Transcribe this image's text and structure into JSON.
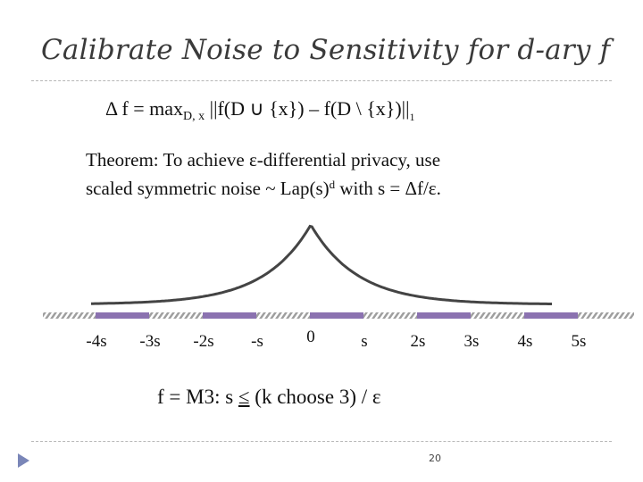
{
  "slide": {
    "title": "Calibrate Noise to Sensitivity for d-ary f",
    "formula": {
      "lhs": "Δ f = max",
      "sub": "D, x",
      "rhs": " ||f(D ∪ {x}) – f(D \\ {x})||",
      "norm_sub": "1"
    },
    "theorem": {
      "line1": "Theorem: To achieve ε-differential privacy, use",
      "line2_a": "scaled symmetric noise ~ Lap(s)",
      "line2_sup": "d",
      "line2_b": " with s = Δf/ε."
    },
    "bound": {
      "lhs": "f  = M3:  s ",
      "leq": "≤",
      "rhs": "  (k choose 3) / ε"
    },
    "page_number": "20"
  },
  "chart_data": {
    "type": "line",
    "distribution": "laplace",
    "ticks": [
      "-4s",
      "-3s",
      "-2s",
      "-s",
      "0",
      "s",
      "2s",
      "3s",
      "4s",
      "5s"
    ],
    "tick_values": [
      -4,
      -3,
      -2,
      -1,
      0,
      1,
      2,
      3,
      4,
      5
    ],
    "xlim": [
      -4.8,
      5.3
    ],
    "colors": {
      "curve": "#444444",
      "axis_bar": "#8b72b0",
      "axis_hatch": "#9f9f9f"
    }
  }
}
